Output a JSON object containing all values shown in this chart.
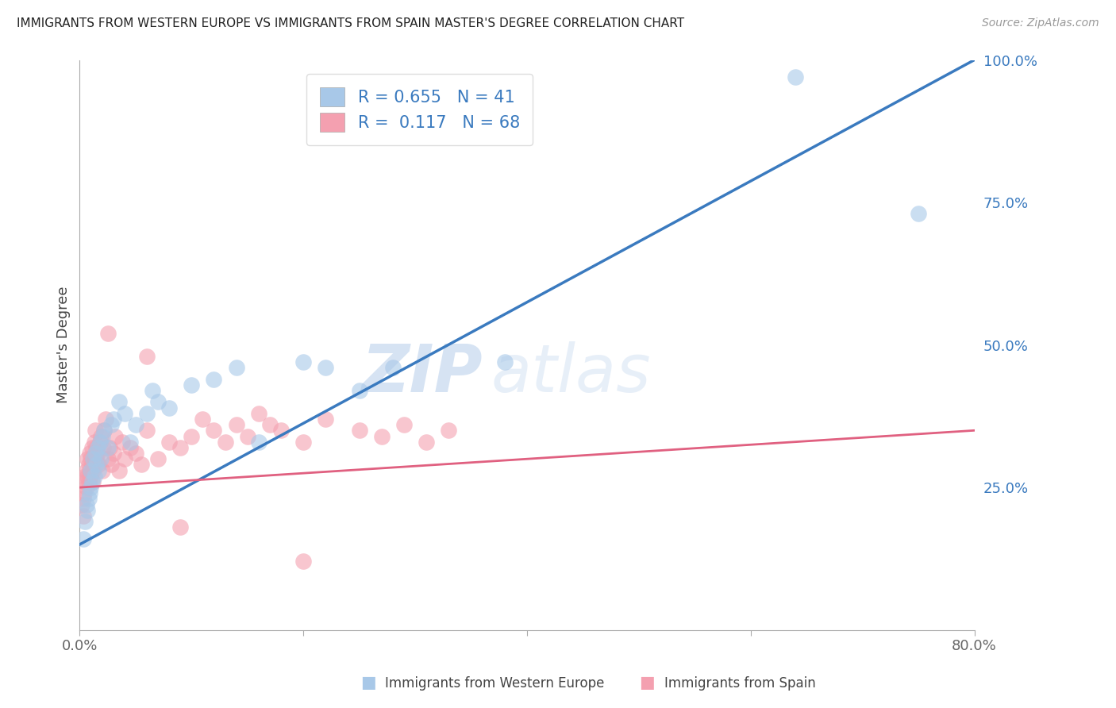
{
  "title": "IMMIGRANTS FROM WESTERN EUROPE VS IMMIGRANTS FROM SPAIN MASTER'S DEGREE CORRELATION CHART",
  "source": "Source: ZipAtlas.com",
  "xlabel_blue": "Immigrants from Western Europe",
  "xlabel_pink": "Immigrants from Spain",
  "ylabel": "Master's Degree",
  "legend_blue_r": "0.655",
  "legend_blue_n": "41",
  "legend_pink_r": "0.117",
  "legend_pink_n": "68",
  "blue_color": "#a8c8e8",
  "pink_color": "#f4a0b0",
  "blue_line_color": "#3a7abf",
  "pink_line_color": "#e06080",
  "xlim": [
    0,
    0.8
  ],
  "ylim": [
    0,
    1.0
  ],
  "blue_trend_x0": 0.0,
  "blue_trend_y0": 0.15,
  "blue_trend_x1": 0.8,
  "blue_trend_y1": 1.0,
  "pink_trend_x0": 0.0,
  "pink_trend_y0": 0.25,
  "pink_trend_x1": 0.8,
  "pink_trend_y1": 0.35,
  "blue_points_x": [
    0.003,
    0.005,
    0.006,
    0.007,
    0.008,
    0.009,
    0.01,
    0.01,
    0.011,
    0.012,
    0.013,
    0.014,
    0.015,
    0.016,
    0.017,
    0.018,
    0.019,
    0.02,
    0.022,
    0.025,
    0.028,
    0.03,
    0.035,
    0.04,
    0.045,
    0.05,
    0.06,
    0.065,
    0.07,
    0.08,
    0.1,
    0.12,
    0.14,
    0.16,
    0.2,
    0.22,
    0.25,
    0.28,
    0.38,
    0.64,
    0.75
  ],
  "blue_points_y": [
    0.16,
    0.19,
    0.22,
    0.21,
    0.23,
    0.24,
    0.25,
    0.28,
    0.26,
    0.3,
    0.27,
    0.31,
    0.29,
    0.32,
    0.28,
    0.33,
    0.3,
    0.34,
    0.35,
    0.32,
    0.36,
    0.37,
    0.4,
    0.38,
    0.33,
    0.36,
    0.38,
    0.42,
    0.4,
    0.39,
    0.43,
    0.44,
    0.46,
    0.33,
    0.47,
    0.46,
    0.42,
    0.46,
    0.47,
    0.97,
    0.73
  ],
  "pink_points_x": [
    0.002,
    0.003,
    0.003,
    0.004,
    0.005,
    0.005,
    0.006,
    0.006,
    0.007,
    0.007,
    0.008,
    0.008,
    0.009,
    0.009,
    0.01,
    0.01,
    0.011,
    0.011,
    0.012,
    0.012,
    0.013,
    0.013,
    0.014,
    0.015,
    0.015,
    0.016,
    0.017,
    0.018,
    0.019,
    0.02,
    0.021,
    0.022,
    0.023,
    0.025,
    0.027,
    0.028,
    0.03,
    0.032,
    0.035,
    0.038,
    0.04,
    0.045,
    0.05,
    0.055,
    0.06,
    0.07,
    0.08,
    0.09,
    0.1,
    0.11,
    0.12,
    0.13,
    0.14,
    0.15,
    0.16,
    0.17,
    0.18,
    0.2,
    0.22,
    0.25,
    0.27,
    0.29,
    0.31,
    0.33,
    0.025,
    0.06,
    0.09,
    0.2
  ],
  "pink_points_y": [
    0.22,
    0.2,
    0.23,
    0.24,
    0.26,
    0.27,
    0.25,
    0.28,
    0.27,
    0.3,
    0.26,
    0.29,
    0.28,
    0.31,
    0.27,
    0.3,
    0.29,
    0.32,
    0.26,
    0.28,
    0.3,
    0.33,
    0.35,
    0.3,
    0.32,
    0.31,
    0.29,
    0.33,
    0.34,
    0.28,
    0.32,
    0.35,
    0.37,
    0.3,
    0.32,
    0.29,
    0.31,
    0.34,
    0.28,
    0.33,
    0.3,
    0.32,
    0.31,
    0.29,
    0.35,
    0.3,
    0.33,
    0.32,
    0.34,
    0.37,
    0.35,
    0.33,
    0.36,
    0.34,
    0.38,
    0.36,
    0.35,
    0.33,
    0.37,
    0.35,
    0.34,
    0.36,
    0.33,
    0.35,
    0.52,
    0.48,
    0.18,
    0.12
  ],
  "watermark_zip": "ZIP",
  "watermark_atlas": "atlas",
  "background_color": "#ffffff",
  "grid_color": "#d0d0d0"
}
